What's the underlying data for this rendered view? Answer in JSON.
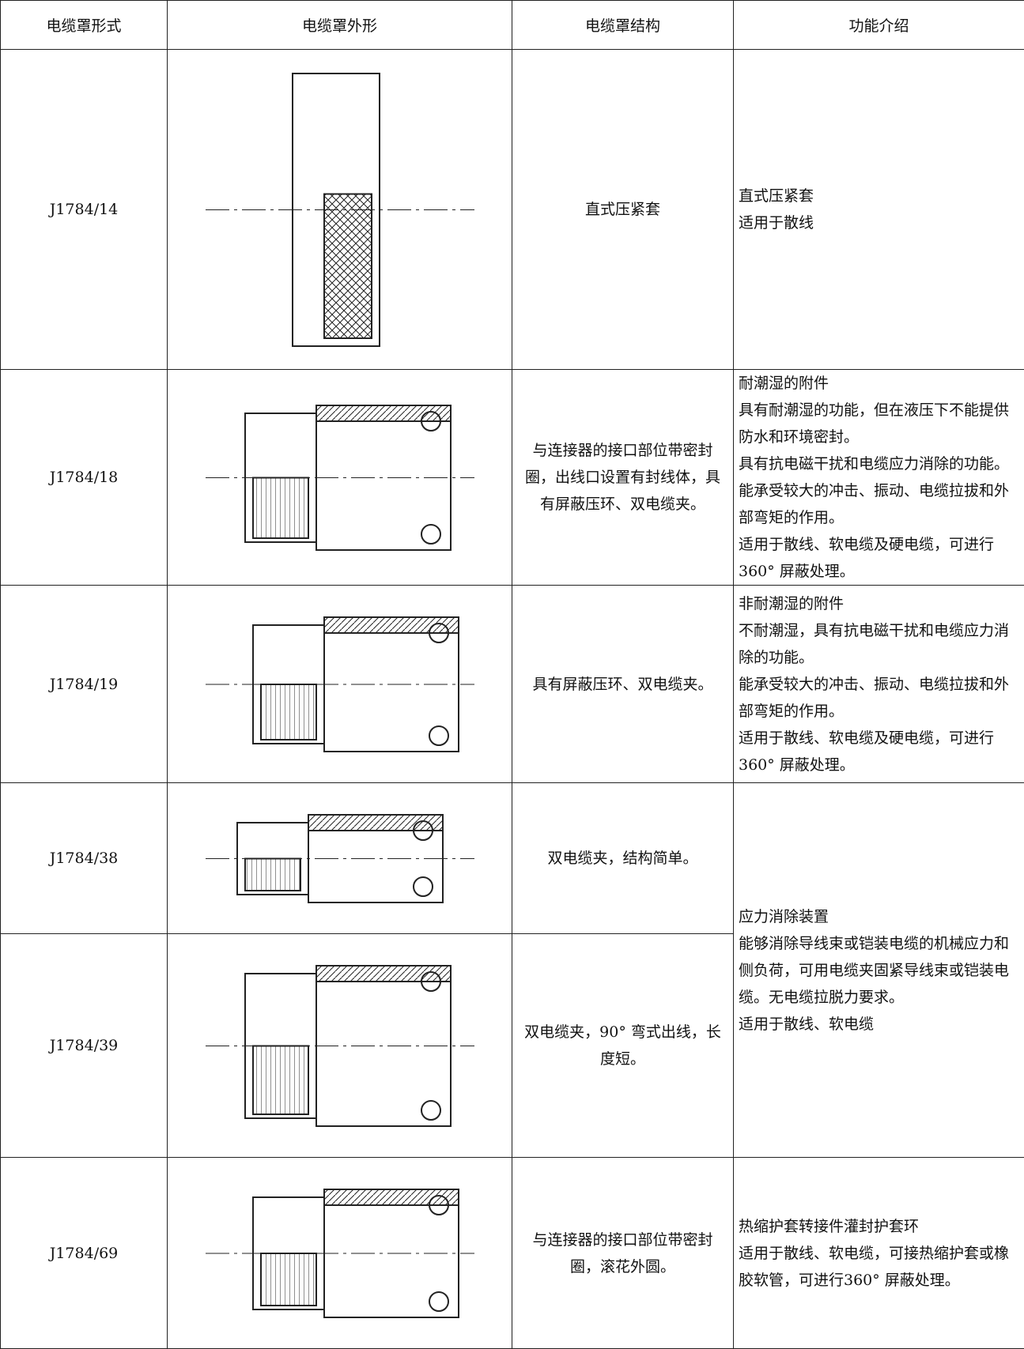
{
  "table": {
    "header": [
      "电缆罩形式",
      "电缆罩外形",
      "电缆罩结构",
      "功能介绍"
    ],
    "rows": [
      {
        "model": "J1784/14",
        "structure": "直式压紧套",
        "function": [
          "直式压紧套",
          "适用于散线"
        ]
      },
      {
        "model": "J1784/18",
        "structure": "与连接器的接口部位带密封圈，出线口设置有封线体，具有屏蔽压环、双电缆夹。",
        "function": [
          "耐潮湿的附件",
          "具有耐潮湿的功能，但在液压下不能提供防水和环境密封。",
          "具有抗电磁干扰和电缆应力消除的功能。",
          "能承受较大的冲击、振动、电缆拉拔和外部弯矩的作用。",
          "适用于散线、软电缆及硬电缆，可进行360° 屏蔽处理。"
        ]
      },
      {
        "model": "J1784/19",
        "structure": "具有屏蔽压环、双电缆夹。",
        "function": [
          "非耐潮湿的附件",
          "不耐潮湿，具有抗电磁干扰和电缆应力消除的功能。",
          "能承受较大的冲击、振动、电缆拉拔和外部弯矩的作用。",
          "适用于散线、软电缆及硬电缆，可进行360° 屏蔽处理。"
        ]
      },
      {
        "model": "J1784/38",
        "structure": "双电缆夹，结构简单。",
        "function": [
          "应力消除装置",
          "能够消除导线束或铠装电缆的机械应力和侧负荷，可用电缆夹固紧导线束或铠装电缆。无电缆拉脱力要求。",
          "适用于散线、软电缆"
        ]
      },
      {
        "model": "J1784/39",
        "structure": "双电缆夹，90° 弯式出线，长度短。"
      },
      {
        "model": "J1784/69",
        "structure": "与连接器的接口部位带密封圈，滚花外圆。",
        "function": [
          "热缩护套转接件灌封护套环",
          "适用于散线、软电缆，可接热缩护套或橡胶软管，可进行360° 屏蔽处理。"
        ]
      }
    ]
  }
}
